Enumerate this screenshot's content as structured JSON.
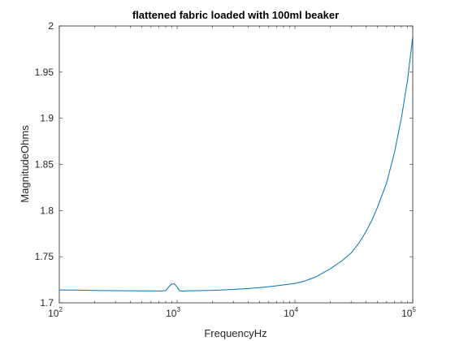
{
  "chart_data": {
    "type": "line",
    "title": "flattened fabric loaded with 100ml beaker",
    "xlabel": "FrequencyHz",
    "ylabel": "MagnitudeOhms",
    "xscale": "log",
    "xlim": [
      100,
      100000
    ],
    "ylim": [
      1.7,
      2.0
    ],
    "xticks": [
      {
        "value": 100,
        "base": "10",
        "exp": "2"
      },
      {
        "value": 1000,
        "base": "10",
        "exp": "3"
      },
      {
        "value": 10000,
        "base": "10",
        "exp": "4"
      },
      {
        "value": 100000,
        "base": "10",
        "exp": "5"
      }
    ],
    "yticks": [
      {
        "value": 1.7,
        "label": "1.7"
      },
      {
        "value": 1.75,
        "label": "1.75"
      },
      {
        "value": 1.8,
        "label": "1.8"
      },
      {
        "value": 1.85,
        "label": "1.85"
      },
      {
        "value": 1.9,
        "label": "1.9"
      },
      {
        "value": 1.95,
        "label": "1.95"
      },
      {
        "value": 2.0,
        "label": "2"
      }
    ],
    "grid": false,
    "legend": "none",
    "series": [
      {
        "color": "#0072BD",
        "x": [
          100,
          150,
          200,
          300,
          400,
          500,
          600,
          700,
          800,
          850,
          900,
          950,
          1000,
          1050,
          1100,
          1200,
          1500,
          2000,
          3000,
          4000,
          5000,
          6000,
          7000,
          8000,
          10000,
          12000,
          15000,
          20000,
          25000,
          30000,
          35000,
          40000,
          45000,
          50000,
          60000,
          70000,
          80000,
          90000,
          100000
        ],
        "y": [
          1.714,
          1.7137,
          1.7134,
          1.7132,
          1.7131,
          1.713,
          1.713,
          1.7129,
          1.7132,
          1.7175,
          1.7205,
          1.7205,
          1.717,
          1.7132,
          1.7128,
          1.713,
          1.7132,
          1.7135,
          1.7145,
          1.7155,
          1.7165,
          1.7175,
          1.7185,
          1.7195,
          1.721,
          1.7235,
          1.728,
          1.737,
          1.7455,
          1.754,
          1.765,
          1.777,
          1.7895,
          1.803,
          1.83,
          1.863,
          1.9,
          1.94,
          1.988
        ]
      }
    ]
  }
}
